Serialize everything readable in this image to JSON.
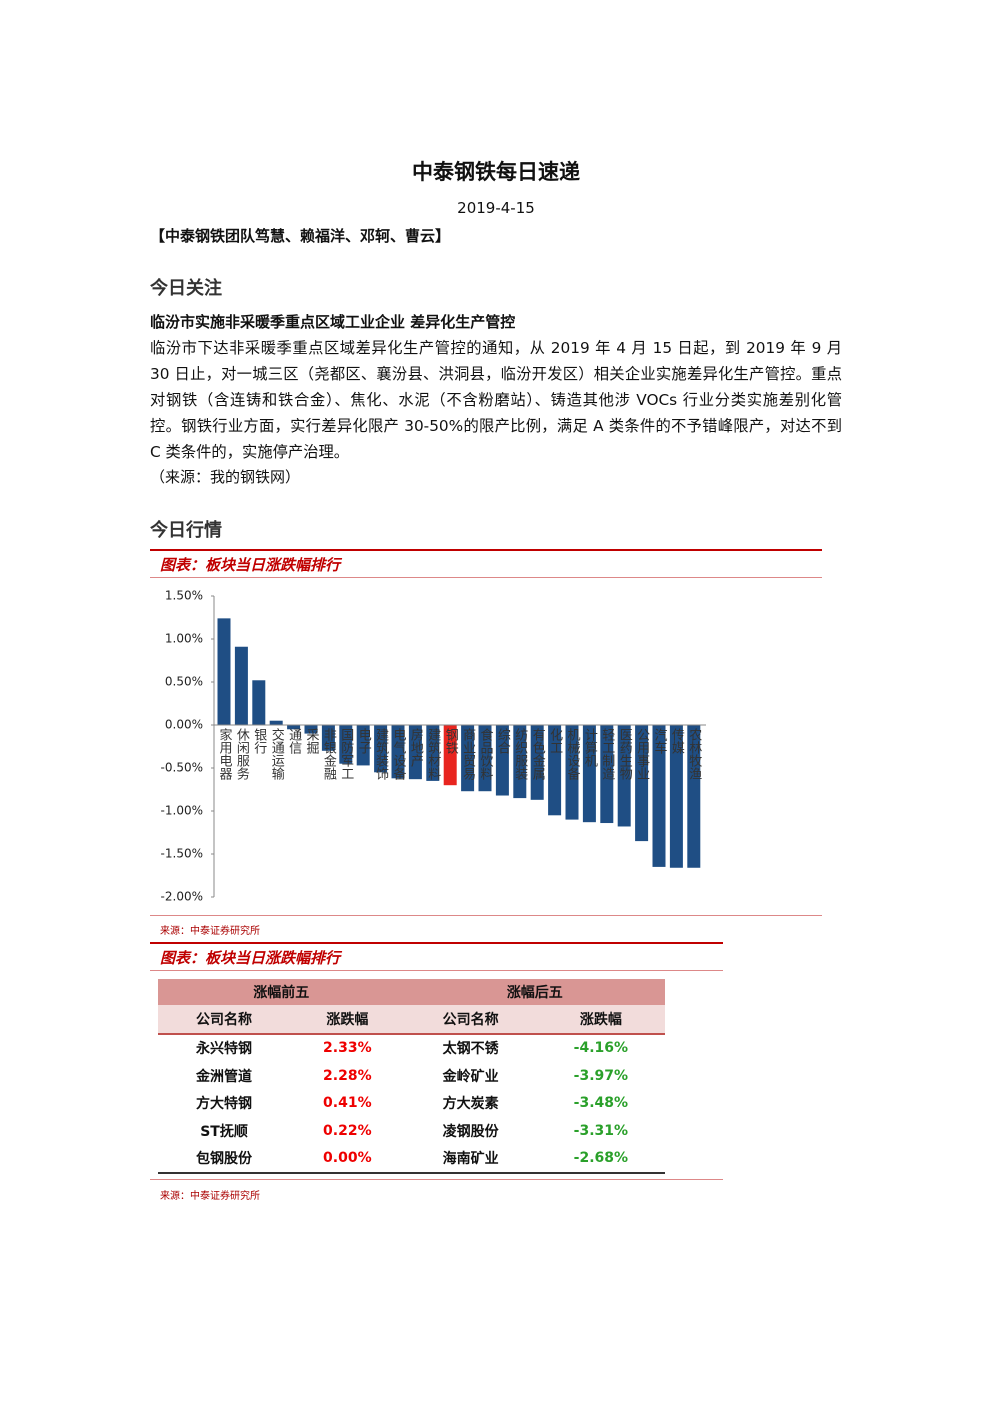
{
  "header": {
    "title": "中泰钢铁每日速递",
    "date": "2019-4-15",
    "authors": "【中泰钢铁团队笃慧、赖福洋、邓轲、曹云】"
  },
  "focus": {
    "heading": "今日关注",
    "subtitle": "临汾市实施非采暖季重点区域工业企业 差异化生产管控",
    "paragraph": "临汾市下达非采暖季重点区域差异化生产管控的通知，从 2019 年 4 月 15 日起，到 2019 年 9 月 30 日止，对一城三区（尧都区、襄汾县、洪洞县，临汾开发区）相关企业实施差异化生产管控。重点对钢铁（含连铸和铁合金）、焦化、水泥（不含粉磨站）、铸造其他涉 VOCs 行业分类实施差别化管控。钢铁行业方面，实行差异化限产 30-50%的限产比例，满足 A 类条件的不予错峰限产，对达不到 C 类条件的，实施停产治理。",
    "source": "（来源：我的钢铁网）"
  },
  "market": {
    "heading": "今日行情"
  },
  "chart_data": {
    "type": "bar",
    "title": "图表：板块当日涨跌幅排行",
    "source": "来源：中泰证券研究所",
    "categories": [
      "家用电器",
      "休闲服务",
      "银行",
      "交通运输",
      "通信",
      "采掘",
      "非银金融",
      "国防军工",
      "电子",
      "建筑装饰",
      "电气设备",
      "房地产",
      "建筑材料",
      "钢铁",
      "商业贸易",
      "食品饮料",
      "综合",
      "纺织服装",
      "有色金属",
      "化工",
      "机械设备",
      "计算机",
      "轻工制造",
      "医药生物",
      "公用事业",
      "汽车",
      "传媒",
      "农林牧渔"
    ],
    "values": [
      1.24,
      0.91,
      0.52,
      0.05,
      -0.05,
      -0.1,
      -0.3,
      -0.45,
      -0.47,
      -0.55,
      -0.62,
      -0.63,
      -0.65,
      -0.7,
      -0.77,
      -0.77,
      -0.82,
      -0.85,
      -0.87,
      -1.05,
      -1.1,
      -1.13,
      -1.14,
      -1.18,
      -1.35,
      -1.65,
      -1.66,
      -1.66
    ],
    "colors": [
      "#1f4e84",
      "#1f4e84",
      "#1f4e84",
      "#1f4e84",
      "#1f4e84",
      "#1f4e84",
      "#1f4e84",
      "#1f4e84",
      "#1f4e84",
      "#1f4e84",
      "#1f4e84",
      "#1f4e84",
      "#1f4e84",
      "#e8251f",
      "#1f4e84",
      "#1f4e84",
      "#1f4e84",
      "#1f4e84",
      "#1f4e84",
      "#1f4e84",
      "#1f4e84",
      "#1f4e84",
      "#1f4e84",
      "#1f4e84",
      "#1f4e84",
      "#1f4e84",
      "#1f4e84",
      "#1f4e84"
    ],
    "ylim": [
      -2,
      1.5
    ],
    "yticks": [
      {
        "value": 1.5,
        "label": "1.50%"
      },
      {
        "value": 1,
        "label": "1.00%"
      },
      {
        "value": 0.5,
        "label": "0.50%"
      },
      {
        "value": 0,
        "label": "0.00%"
      },
      {
        "value": -0.5,
        "label": "-0.50%"
      },
      {
        "value": -1,
        "label": "-1.00%"
      },
      {
        "value": -1.5,
        "label": "-1.50%"
      },
      {
        "value": -2,
        "label": "-2.00%"
      }
    ]
  },
  "table": {
    "title": "图表：板块当日涨跌幅排行",
    "groups": [
      "涨幅前五",
      "涨幅后五"
    ],
    "columns": [
      "公司名称",
      "涨跌幅",
      "公司名称",
      "涨跌幅"
    ],
    "rows": [
      [
        "永兴特钢",
        "2.33%",
        "太钢不锈",
        "-4.16%"
      ],
      [
        "金洲管道",
        "2.28%",
        "金岭矿业",
        "-3.97%"
      ],
      [
        "方大特钢",
        "0.41%",
        "方大炭素",
        "-3.48%"
      ],
      [
        "ST抚顺",
        "0.22%",
        "凌钢股份",
        "-3.31%"
      ],
      [
        "包钢股份",
        "0.00%",
        "海南矿业",
        "-2.68%"
      ]
    ],
    "source": "来源：中泰证券研究所"
  }
}
